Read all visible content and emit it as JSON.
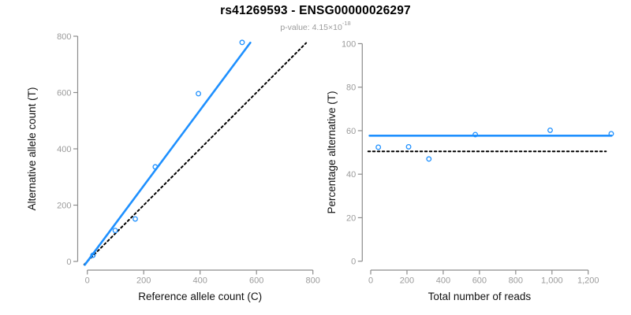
{
  "header": {
    "title": "rs41269593 - ENSG00000026297",
    "subtitle_base": "p-value: 4.15×10",
    "subtitle_exponent": "-18"
  },
  "colors": {
    "accent_blue": "#1e90ff",
    "reference_black": "#000000",
    "axis_gray": "#8c8c8c",
    "tick_label_gray": "#9b9b9b",
    "axis_title_color": "#111111"
  },
  "chart_data": [
    {
      "type": "scatter",
      "name": "allele-counts",
      "xlabel": "Reference allele count (C)",
      "ylabel": "Alternative allele count (T)",
      "xlim": [
        0,
        800
      ],
      "ylim": [
        0,
        800
      ],
      "xticks": [
        0,
        200,
        400,
        600,
        800
      ],
      "xtick_labels": [
        "0",
        "200",
        "400",
        "600",
        "800"
      ],
      "yticks": [
        0,
        200,
        400,
        600,
        800
      ],
      "ytick_labels": [
        "0",
        "200",
        "400",
        "600",
        "800"
      ],
      "grid": false,
      "point_color": "#1e90ff",
      "points": [
        [
          20,
          22
        ],
        [
          99,
          110
        ],
        [
          170,
          151
        ],
        [
          241,
          336
        ],
        [
          394,
          596
        ],
        [
          549,
          778
        ]
      ],
      "lines": [
        {
          "name": "identity-line",
          "x1": -11,
          "y1": -11,
          "x2": 776,
          "y2": 776,
          "color": "#000000",
          "width": 2,
          "dash": "2.5 3.5"
        },
        {
          "name": "fit-line",
          "x1": -9,
          "y1": -12,
          "x2": 578,
          "y2": 777,
          "color": "#1e90ff",
          "width": 2.6,
          "dash": ""
        }
      ]
    },
    {
      "type": "scatter",
      "name": "percentage-alternative",
      "xlabel": "Total number of reads",
      "ylabel": "Percentage alternative (T)",
      "xlim": [
        0,
        1327
      ],
      "ylim": [
        0,
        100
      ],
      "xticks": [
        0,
        200,
        400,
        600,
        800,
        1000,
        1200
      ],
      "xtick_labels": [
        "0",
        "200",
        "400",
        "600",
        "800",
        "1,000",
        "1,200"
      ],
      "yticks": [
        0,
        20,
        40,
        60,
        80,
        100
      ],
      "ytick_labels": [
        "0",
        "20",
        "40",
        "60",
        "80",
        "100"
      ],
      "grid": false,
      "point_color": "#1e90ff",
      "points": [
        [
          42,
          52.4
        ],
        [
          209,
          52.6
        ],
        [
          321,
          47.0
        ],
        [
          577,
          58.2
        ],
        [
          990,
          60.2
        ],
        [
          1327,
          58.6
        ]
      ],
      "lines": [
        {
          "name": "expected-50pct-line",
          "x1": -14,
          "y1": 50.5,
          "x2": 1298,
          "y2": 50.5,
          "color": "#000000",
          "width": 2,
          "dash": "2.5 3.5"
        },
        {
          "name": "fit-line",
          "x1": -6,
          "y1": 57.7,
          "x2": 1328,
          "y2": 57.7,
          "color": "#1e90ff",
          "width": 2.6,
          "dash": ""
        }
      ]
    }
  ]
}
